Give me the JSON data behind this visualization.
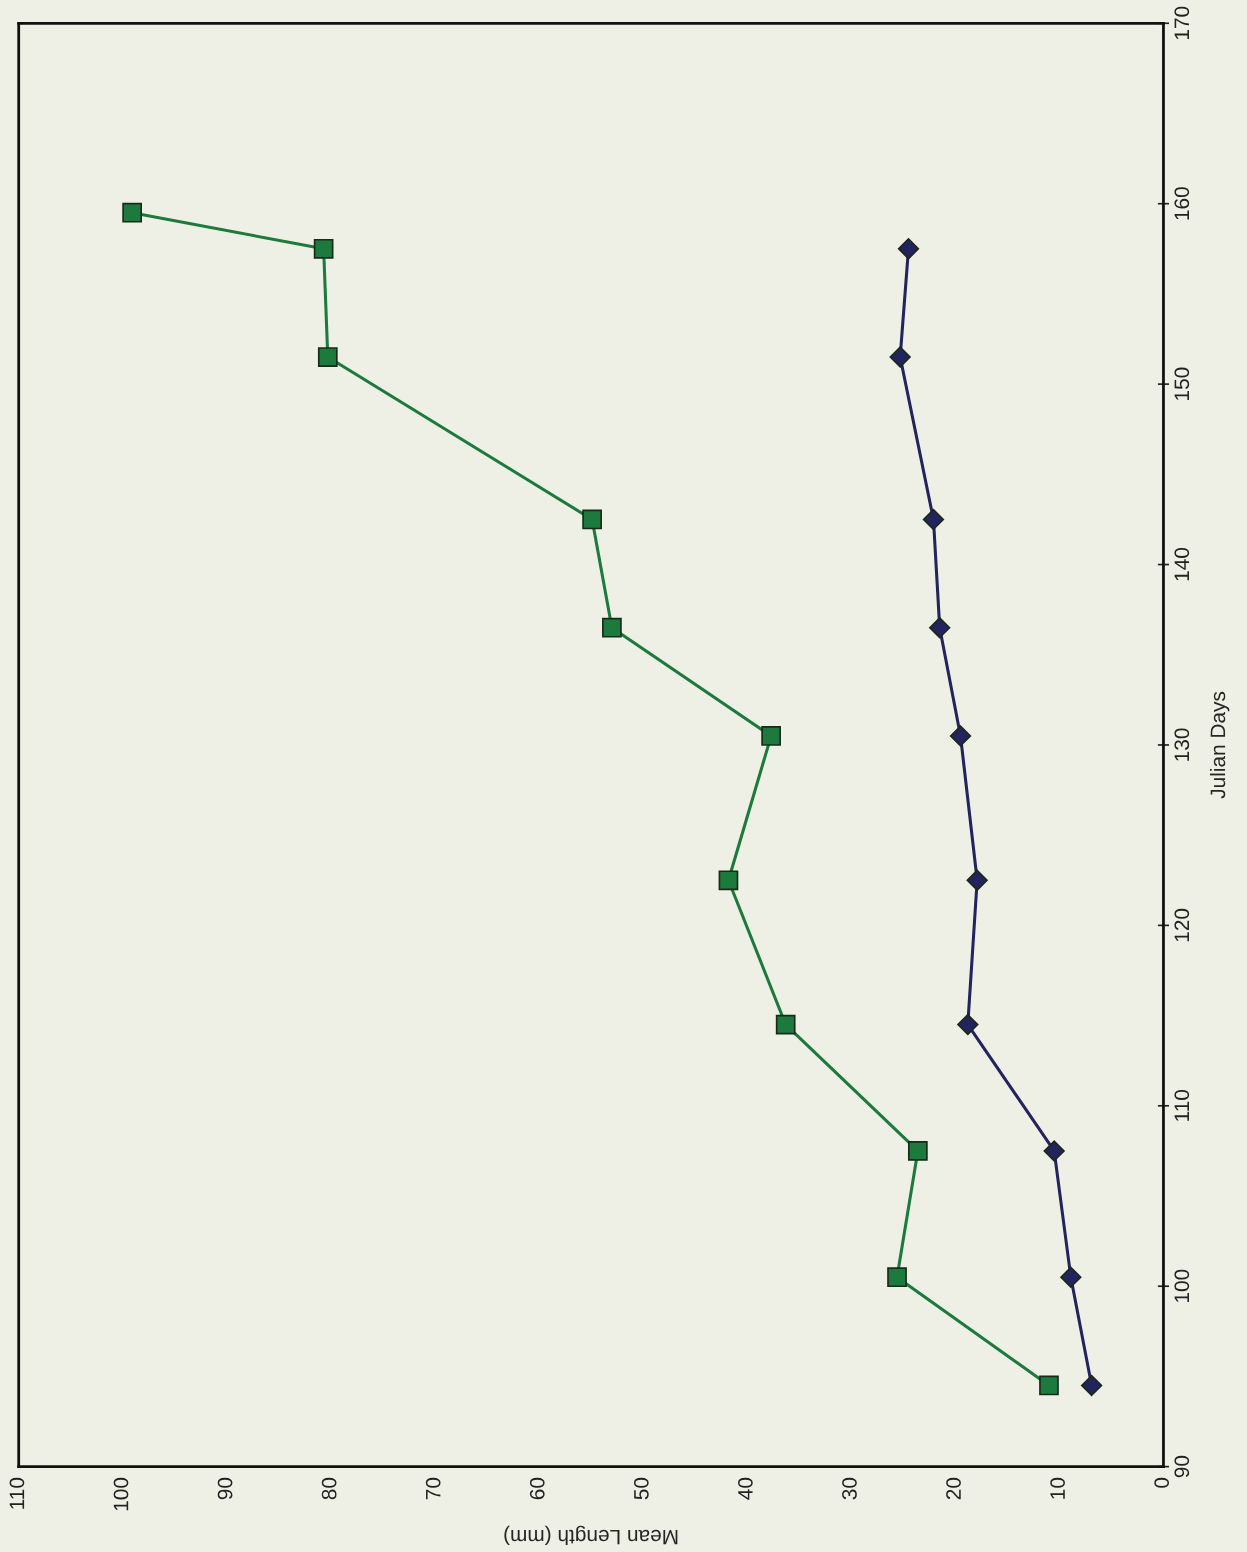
{
  "chart_data": {
    "type": "line",
    "xlabel": "Mean Length (mm)",
    "ylabel": "Julian Days",
    "series": [
      {
        "color": "#1c7a3c",
        "marker": "square",
        "x": [
          11,
          25.6,
          23.6,
          36.3,
          41.8,
          37.7,
          53.0,
          54.9,
          80.3,
          80.7,
          99.1
        ],
        "values": [
          94.5,
          100.5,
          107.5,
          114.5,
          122.5,
          130.5,
          136.5,
          142.5,
          151.5,
          157.5,
          159.5
        ]
      },
      {
        "color": "#23235e",
        "marker": "diamond",
        "x": [
          6.9,
          8.9,
          10.5,
          18.8,
          17.9,
          19.5,
          21.5,
          22.1,
          25.3,
          24.5
        ],
        "values": [
          94.5,
          100.5,
          107.5,
          114.5,
          122.5,
          130.5,
          136.5,
          142.5,
          151.5,
          157.5
        ]
      }
    ],
    "ylim": [
      90,
      170
    ],
    "yticks": [
      90,
      100,
      110,
      120,
      130,
      140,
      150,
      160,
      170
    ],
    "xlim": [
      110,
      0
    ],
    "xticks": [
      0,
      10,
      20,
      30,
      40,
      50,
      60,
      70,
      80,
      90,
      100,
      110
    ],
    "grid": false,
    "legend": false,
    "line_style": "solid"
  }
}
